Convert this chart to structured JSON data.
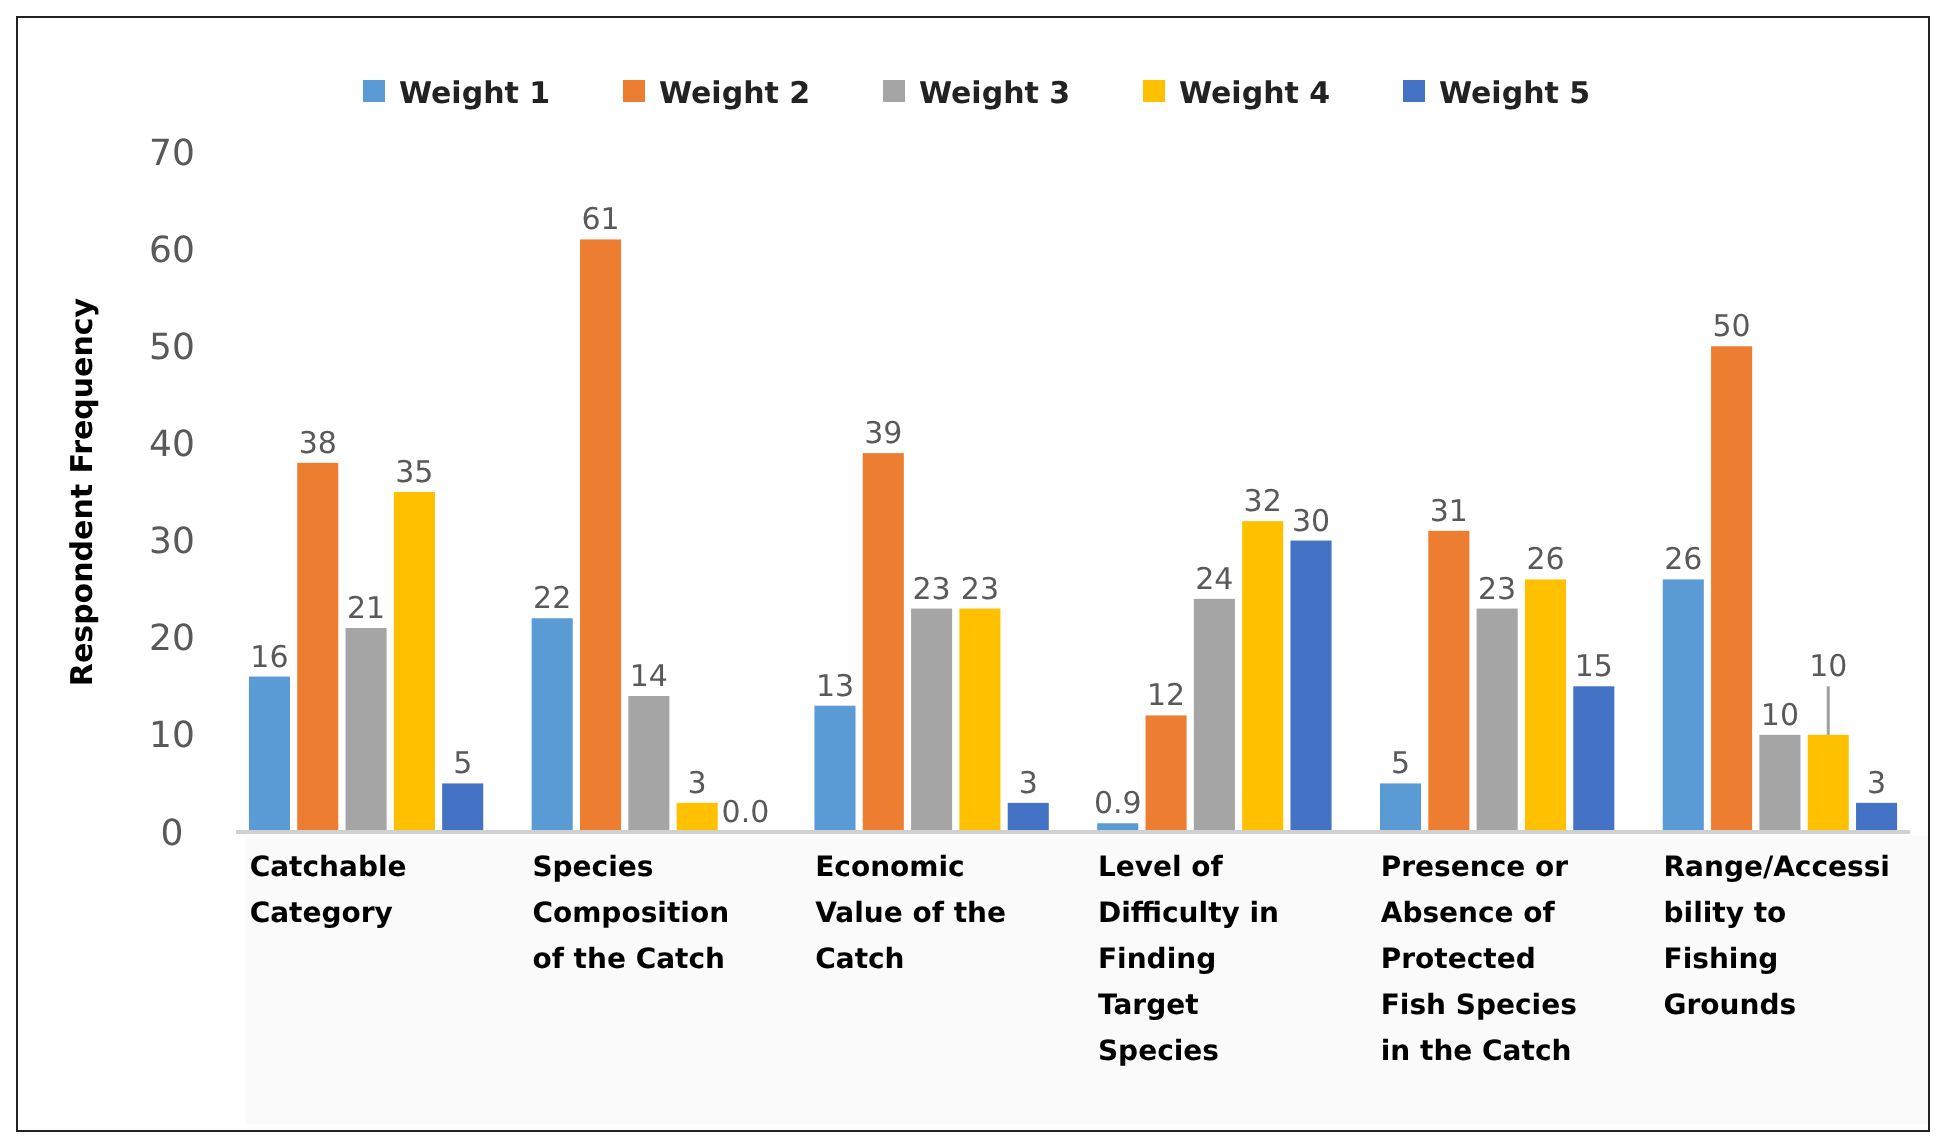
{
  "chart_data": {
    "type": "bar",
    "ylabel": "Respondent Frequency",
    "categories": [
      "Catchable Category",
      "Species Composition of the Catch",
      "Economic Value of the Catch",
      "Level of Difficulty in Finding Target Species",
      "Presence or Absence of Protected Fish Species in the Catch",
      "Range/Accessibility to Fishing Grounds"
    ],
    "series": [
      {
        "name": "Weight 1",
        "color": "#5b9bd5",
        "values": [
          16,
          22,
          13,
          0.9,
          5,
          26
        ],
        "value_labels": [
          "16",
          "22",
          "13",
          "0.9",
          "5",
          "26"
        ]
      },
      {
        "name": "Weight 2",
        "color": "#ed7d31",
        "values": [
          38,
          61,
          39,
          12,
          31,
          50
        ],
        "value_labels": [
          "38",
          "61",
          "39",
          "12",
          "31",
          "50"
        ]
      },
      {
        "name": "Weight 3",
        "color": "#a5a5a5",
        "values": [
          21,
          14,
          23,
          24,
          23,
          10
        ],
        "value_labels": [
          "21",
          "14",
          "23",
          "24",
          "23",
          "10"
        ]
      },
      {
        "name": "Weight 4",
        "color": "#ffc000",
        "values": [
          35,
          3,
          23,
          32,
          26,
          10
        ],
        "value_labels": [
          "35",
          "3",
          "23",
          "32",
          "26",
          "10"
        ],
        "errors": [
          null,
          null,
          null,
          null,
          null,
          [
            10,
            15
          ]
        ]
      },
      {
        "name": "Weight 5",
        "color": "#4472c4",
        "values": [
          5,
          0,
          3,
          30,
          15,
          3
        ],
        "value_labels": [
          "5",
          "0.0",
          "3",
          "30",
          "15",
          "3"
        ]
      }
    ],
    "ylim": [
      0,
      70
    ],
    "yticks": [
      0,
      10,
      20,
      30,
      40,
      50,
      60,
      70
    ],
    "grid": false,
    "legend": "top"
  }
}
